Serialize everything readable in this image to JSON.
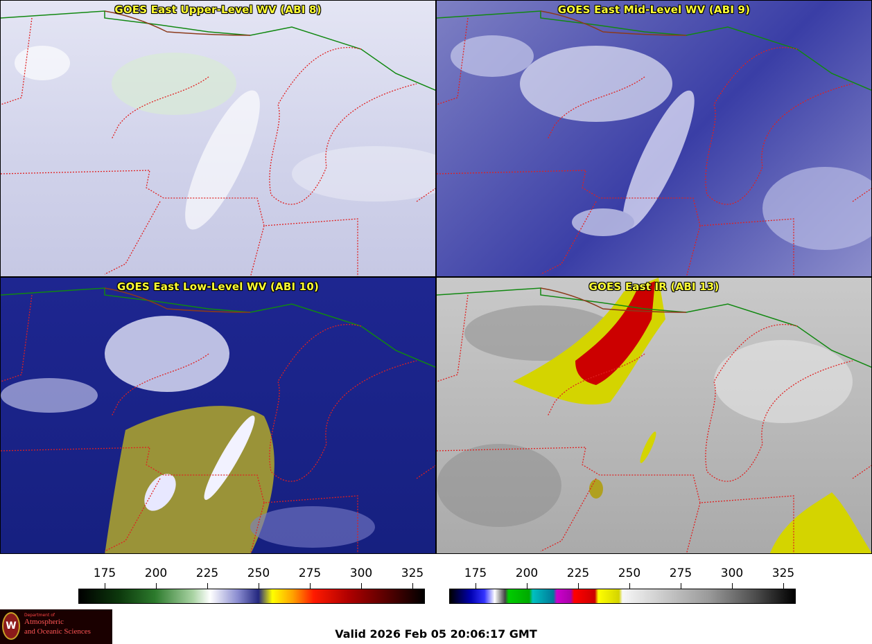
{
  "panels": [
    {
      "title": "GOES East Upper-Level WV (ABI 8)"
    },
    {
      "title": "GOES East Mid-Level WV (ABI 9)"
    },
    {
      "title": "GOES East Low-Level WV (ABI 10)"
    },
    {
      "title": "GOES East IR (ABI 13)"
    }
  ],
  "colorbars": [
    {
      "ticks": [
        "175",
        "200",
        "225",
        "250",
        "275",
        "300",
        "325"
      ]
    },
    {
      "ticks": [
        "175",
        "200",
        "225",
        "250",
        "275",
        "300",
        "325"
      ]
    }
  ],
  "logo": {
    "dept": "Department of",
    "line1": "Atmospheric",
    "line2": "and Oceanic Sciences",
    "seal": "W"
  },
  "valid_time": "Valid 2026 Feb 05 20:06:17 GMT",
  "colors": {
    "title": "#ffff33",
    "state_borders": "#e02020",
    "international_border": "#118811",
    "coastline": "#8b3a1a"
  }
}
